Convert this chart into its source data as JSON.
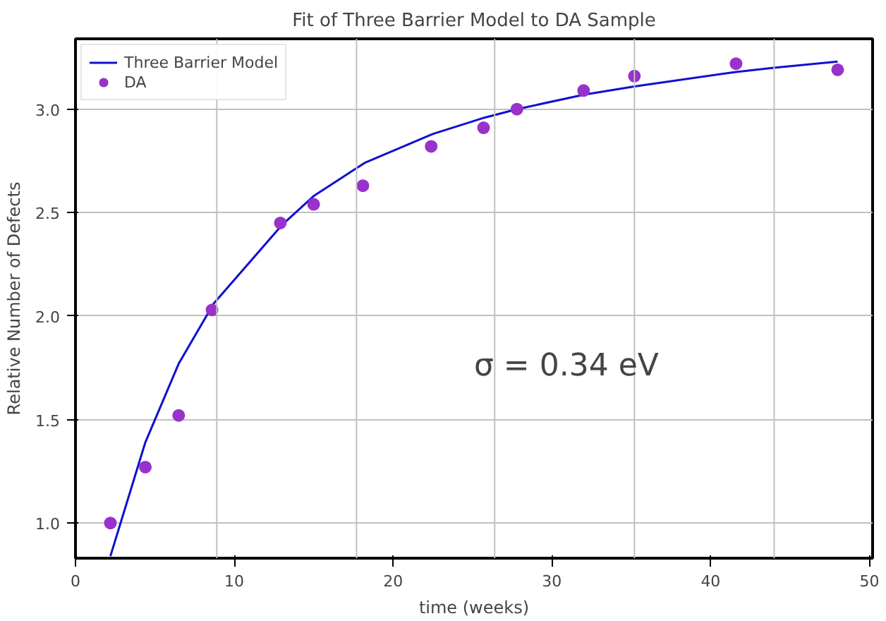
{
  "chart_data": {
    "type": "scatter",
    "title": "Fit of Three Barrier Model to DA Sample",
    "xlabel": "time (weeks)",
    "ylabel": "Relative Number of Defects",
    "xlim": [
      0,
      50.2
    ],
    "xticks": [
      0,
      10,
      20,
      30,
      40,
      50
    ],
    "ylim": [
      0.83,
      3.34
    ],
    "yticks": [
      {
        "value": 1.0,
        "label": "1.0"
      },
      {
        "value": 1.5,
        "label": "1.5"
      },
      {
        "value": 2.0,
        "label": "2.0"
      },
      {
        "value": 2.5,
        "label": "2.5"
      },
      {
        "value": 3.0,
        "label": "3.0"
      }
    ],
    "grid": "y",
    "legend": "top left",
    "ref_lines": [
      {
        "axis": "x",
        "value": 8.9,
        "color": "#c0c0c0"
      },
      {
        "axis": "x",
        "value": 17.7,
        "color": "#c0c0c0"
      },
      {
        "axis": "x",
        "value": 26.4,
        "color": "#c0c0c0"
      },
      {
        "axis": "x",
        "value": 35.2,
        "color": "#c0c0c0"
      },
      {
        "axis": "x",
        "value": 44.0,
        "color": "#c0c0c0"
      }
    ],
    "annotations": [
      "σ = 0.34 eV"
    ],
    "series": [
      {
        "name": "Three Barrier Model",
        "type": "line",
        "color": "#1010d0",
        "x": [
          2.2,
          4.4,
          6.5,
          8.7,
          13.0,
          15.0,
          18.2,
          22.5,
          25.8,
          27.8,
          32.0,
          35.2,
          41.6,
          44.0,
          48.0
        ],
        "values": [
          0.84,
          1.39,
          1.77,
          2.06,
          2.44,
          2.58,
          2.74,
          2.88,
          2.96,
          3.0,
          3.07,
          3.11,
          3.18,
          3.2,
          3.23
        ]
      },
      {
        "name": "DA",
        "marker": "circle",
        "color": "#9932cc",
        "x": [
          2.2,
          4.4,
          6.5,
          8.6,
          12.9,
          15.0,
          18.1,
          22.4,
          25.7,
          27.8,
          32.0,
          35.2,
          41.6,
          48.0
        ],
        "values": [
          1.0,
          1.27,
          1.52,
          2.03,
          2.45,
          2.54,
          2.63,
          2.82,
          2.91,
          3.0,
          3.09,
          3.16,
          3.22,
          3.19
        ]
      }
    ]
  }
}
